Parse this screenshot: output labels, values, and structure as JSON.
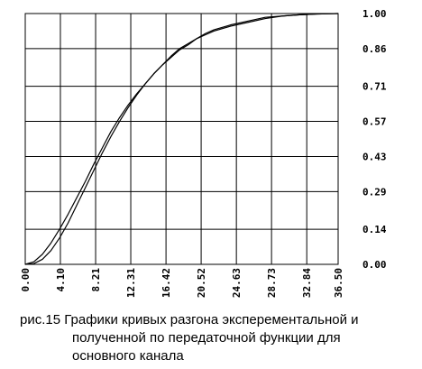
{
  "chart_data": {
    "type": "line",
    "title": "",
    "xlabel": "",
    "ylabel": "",
    "xlim": [
      0,
      36.5
    ],
    "ylim": [
      0,
      1.0
    ],
    "x_ticks": [
      "0.00",
      "4.10",
      "8.21",
      "12.31",
      "16.42",
      "20.52",
      "24.63",
      "28.73",
      "32.84",
      "36.50"
    ],
    "y_ticks": [
      "1.00",
      "0.86",
      "0.71",
      "0.57",
      "0.43",
      "0.29",
      "0.14",
      "0.00"
    ],
    "grid": true,
    "series": [
      {
        "values": [
          [
            0,
            0
          ],
          [
            1,
            0.01
          ],
          [
            2,
            0.04
          ],
          [
            3,
            0.085
          ],
          [
            4,
            0.14
          ],
          [
            5,
            0.2
          ],
          [
            6,
            0.265
          ],
          [
            7,
            0.33
          ],
          [
            8,
            0.4
          ],
          [
            9,
            0.465
          ],
          [
            10,
            0.53
          ],
          [
            11,
            0.585
          ],
          [
            12,
            0.635
          ],
          [
            13,
            0.68
          ],
          [
            14,
            0.72
          ],
          [
            15,
            0.76
          ],
          [
            16,
            0.795
          ],
          [
            17,
            0.825
          ],
          [
            18,
            0.855
          ],
          [
            19,
            0.875
          ],
          [
            20,
            0.9
          ],
          [
            21,
            0.92
          ],
          [
            22,
            0.935
          ],
          [
            24,
            0.955
          ],
          [
            26,
            0.97
          ],
          [
            28,
            0.985
          ],
          [
            30,
            0.99
          ],
          [
            32,
            0.995
          ],
          [
            34,
            0.998
          ],
          [
            36.5,
            1.0
          ]
        ]
      },
      {
        "values": [
          [
            0,
            0
          ],
          [
            1,
            0.003
          ],
          [
            2,
            0.02
          ],
          [
            3,
            0.055
          ],
          [
            4,
            0.105
          ],
          [
            5,
            0.165
          ],
          [
            6,
            0.235
          ],
          [
            7,
            0.305
          ],
          [
            8,
            0.375
          ],
          [
            9,
            0.445
          ],
          [
            10,
            0.51
          ],
          [
            11,
            0.57
          ],
          [
            12,
            0.625
          ],
          [
            13,
            0.675
          ],
          [
            14,
            0.72
          ],
          [
            15,
            0.76
          ],
          [
            16,
            0.795
          ],
          [
            17,
            0.83
          ],
          [
            18,
            0.86
          ],
          [
            19,
            0.88
          ],
          [
            20,
            0.9
          ],
          [
            21,
            0.915
          ],
          [
            22,
            0.93
          ],
          [
            24,
            0.95
          ],
          [
            26,
            0.965
          ],
          [
            28,
            0.98
          ],
          [
            30,
            0.99
          ],
          [
            32,
            0.995
          ],
          [
            34,
            0.998
          ],
          [
            36.5,
            1.0
          ]
        ]
      }
    ]
  },
  "caption": {
    "line1": "рис.15 Графики кривых разгона эксперементальной и",
    "line2": "полученной по передаточной функции для",
    "line3": "основного канала"
  }
}
